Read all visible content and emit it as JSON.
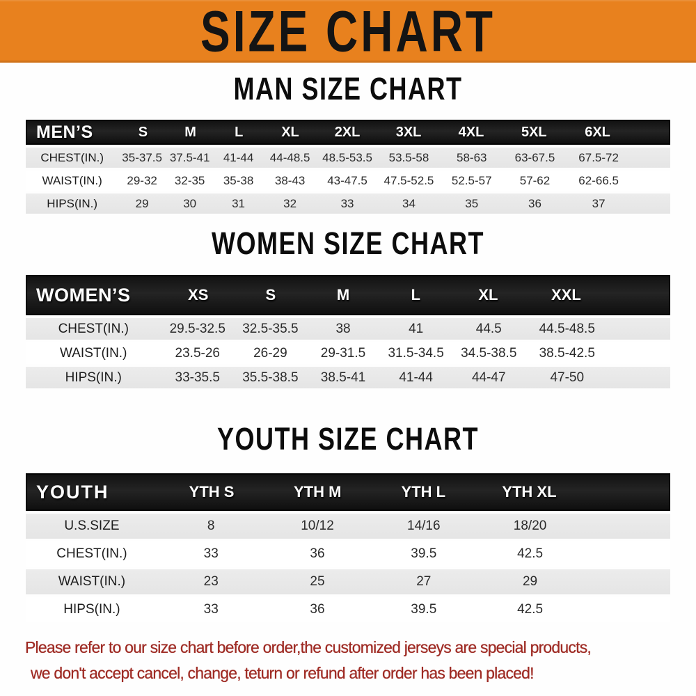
{
  "colors": {
    "banner_orange": "#e8811e",
    "header_black": "#191919",
    "row_gray": "#e5e5e5",
    "footer_red": "#9e2a23"
  },
  "banner": {
    "title": "SIZE CHART"
  },
  "sections": [
    {
      "name": "mens",
      "title": "MAN SIZE CHART",
      "header_label": "MEN’S",
      "columns": [
        "S",
        "M",
        "L",
        "XL",
        "2XL",
        "3XL",
        "4XL",
        "5XL",
        "6XL"
      ],
      "rows": [
        {
          "label": "CHEST(IN.)",
          "values": [
            "35-37.5",
            "37.5-41",
            "41-44",
            "44-48.5",
            "48.5-53.5",
            "53.5-58",
            "58-63",
            "63-67.5",
            "67.5-72"
          ]
        },
        {
          "label": "WAIST(IN.)",
          "values": [
            "29-32",
            "32-35",
            "35-38",
            "38-43",
            "43-47.5",
            "47.5-52.5",
            "52.5-57",
            "57-62",
            "62-66.5"
          ]
        },
        {
          "label": "HIPS(IN.)",
          "values": [
            "29",
            "30",
            "31",
            "32",
            "33",
            "34",
            "35",
            "36",
            "37"
          ]
        }
      ]
    },
    {
      "name": "womens",
      "title": "WOMEN SIZE CHART",
      "header_label": "WOMEN’S",
      "columns": [
        "XS",
        "S",
        "M",
        "L",
        "XL",
        "XXL"
      ],
      "rows": [
        {
          "label": "CHEST(IN.)",
          "values": [
            "29.5-32.5",
            "32.5-35.5",
            "38",
            "41",
            "44.5",
            "44.5-48.5"
          ]
        },
        {
          "label": "WAIST(IN.)",
          "values": [
            "23.5-26",
            "26-29",
            "29-31.5",
            "31.5-34.5",
            "34.5-38.5",
            "38.5-42.5"
          ]
        },
        {
          "label": "HIPS(IN.)",
          "values": [
            "33-35.5",
            "35.5-38.5",
            "38.5-41",
            "41-44",
            "44-47",
            "47-50"
          ]
        }
      ]
    },
    {
      "name": "youth",
      "title": "YOUTH SIZE CHART",
      "header_label": "YOUTH",
      "columns": [
        "YTH S",
        "YTH M",
        "YTH L",
        "YTH XL"
      ],
      "rows": [
        {
          "label": "U.S.SIZE",
          "values": [
            "8",
            "10/12",
            "14/16",
            "18/20"
          ]
        },
        {
          "label": "CHEST(IN.)",
          "values": [
            "33",
            "36",
            "39.5",
            "42.5"
          ]
        },
        {
          "label": "WAIST(IN.)",
          "values": [
            "23",
            "25",
            "27",
            "29"
          ]
        },
        {
          "label": "HIPS(IN.)",
          "values": [
            "33",
            "36",
            "39.5",
            "42.5"
          ]
        }
      ]
    }
  ],
  "footer": {
    "line1": "Please refer to our size chart before order,the customized jerseys are special products,",
    "line2": "we don't accept cancel, change, teturn or refund after order has been placed!"
  }
}
